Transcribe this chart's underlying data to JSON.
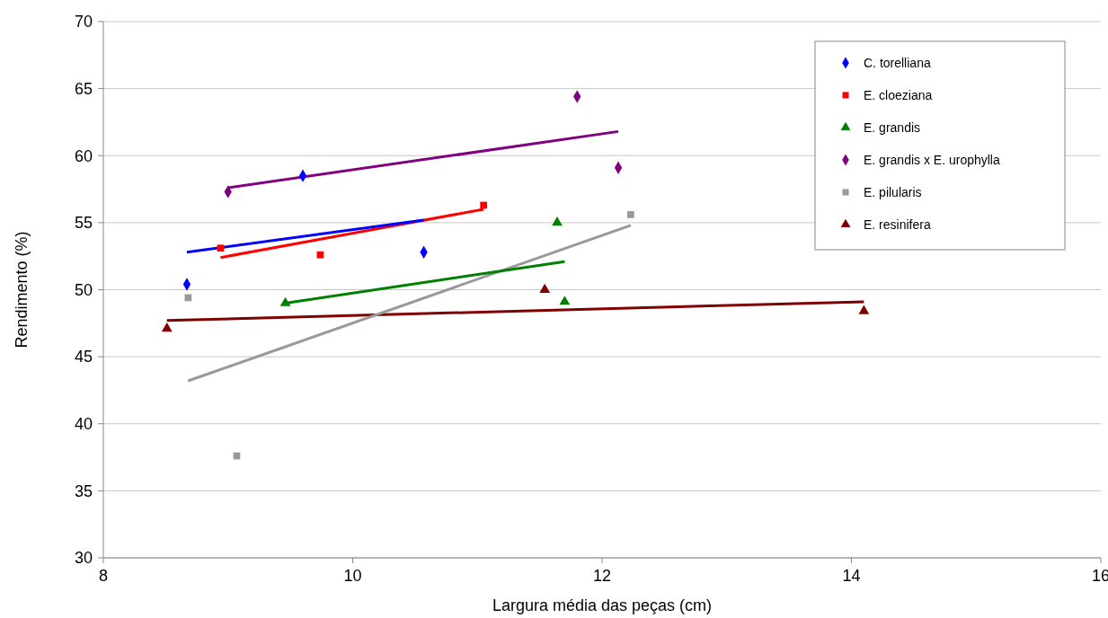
{
  "chart_data": {
    "type": "scatter",
    "xlabel": "Largura média das peças (cm)",
    "ylabel": "Rendimento (%)",
    "xlim": [
      8,
      16
    ],
    "xticks": [
      8,
      10,
      12,
      14,
      16
    ],
    "ylim": [
      30,
      70
    ],
    "yticks": [
      30,
      35,
      40,
      45,
      50,
      55,
      60,
      65,
      70
    ],
    "grid": "y",
    "legend": "top right",
    "series": [
      {
        "name": "C. torelliana",
        "color": "#0000ff",
        "marker": "diamond",
        "x": [
          8.67,
          9.6,
          10.57
        ],
        "values": [
          50.4,
          58.5,
          52.8
        ]
      },
      {
        "name": "E. cloeziana",
        "color": "#ff0000",
        "marker": "square",
        "x": [
          8.94,
          9.74,
          11.05
        ],
        "values": [
          53.1,
          52.6,
          56.3
        ]
      },
      {
        "name": "E. grandis",
        "color": "#008000",
        "marker": "triangle",
        "x": [
          9.46,
          11.64,
          11.7
        ],
        "values": [
          49.0,
          55.0,
          49.1
        ]
      },
      {
        "name": "E. grandis x E. urophylla",
        "color": "#800080",
        "marker": "diamond",
        "x": [
          9.0,
          11.8,
          12.13
        ],
        "values": [
          57.3,
          64.4,
          59.1
        ]
      },
      {
        "name": "E. pilularis",
        "color": "#999999",
        "marker": "square",
        "x": [
          8.68,
          9.07,
          12.23
        ],
        "values": [
          49.4,
          37.6,
          55.6
        ]
      },
      {
        "name": "E. resinifera",
        "color": "#800000",
        "marker": "triangle",
        "x": [
          8.51,
          11.54,
          14.1
        ],
        "values": [
          47.1,
          50.0,
          48.4
        ]
      },
      {
        "type": "line",
        "color": "#0000ff",
        "x": [
          8.67,
          10.57
        ],
        "values": [
          52.8,
          55.2
        ]
      },
      {
        "type": "line",
        "color": "#ff0000",
        "x": [
          8.94,
          11.05
        ],
        "values": [
          52.4,
          56.0
        ]
      },
      {
        "type": "line",
        "color": "#008000",
        "x": [
          9.46,
          11.7
        ],
        "values": [
          49.0,
          52.1
        ]
      },
      {
        "type": "line",
        "color": "#800080",
        "x": [
          9.0,
          12.13
        ],
        "values": [
          57.6,
          61.8
        ]
      },
      {
        "type": "line",
        "color": "#999999",
        "x": [
          8.68,
          12.23
        ],
        "values": [
          43.2,
          54.8
        ]
      },
      {
        "type": "line",
        "color": "#800000",
        "x": [
          8.51,
          14.1
        ],
        "values": [
          47.7,
          49.1
        ]
      }
    ]
  }
}
